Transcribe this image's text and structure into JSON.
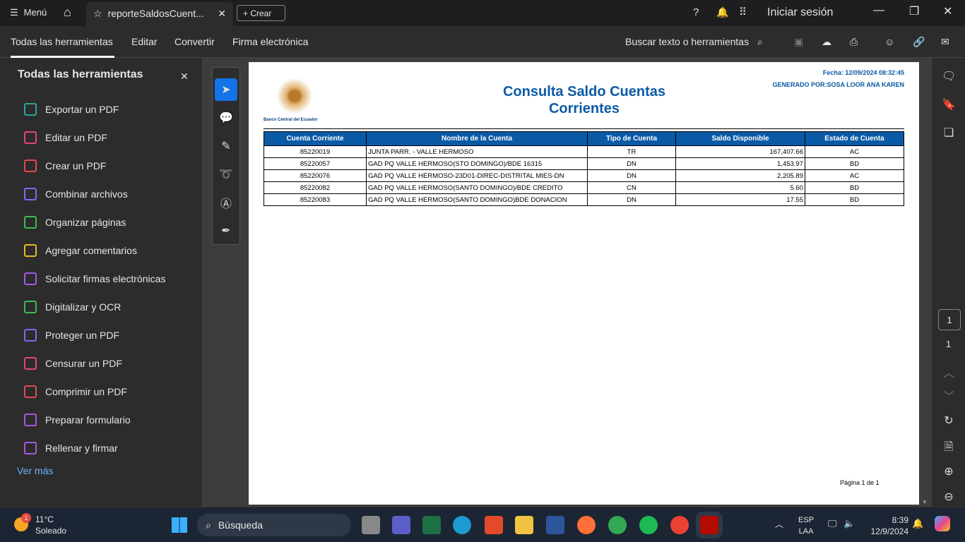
{
  "topbar": {
    "menu": "Menú",
    "tab_title": "reporteSaldosCuent...",
    "create": "Crear",
    "signin": "Iniciar sesión"
  },
  "toolbar": {
    "tabs": [
      "Todas las herramientas",
      "Editar",
      "Convertir",
      "Firma electrónica"
    ],
    "search": "Buscar texto o herramientas"
  },
  "sidebar": {
    "title": "Todas las herramientas",
    "items": [
      {
        "label": "Exportar un PDF",
        "color": "#2fa39a"
      },
      {
        "label": "Editar un PDF",
        "color": "#e0457b"
      },
      {
        "label": "Crear un PDF",
        "color": "#e34850"
      },
      {
        "label": "Combinar archivos",
        "color": "#7b6cf0"
      },
      {
        "label": "Organizar páginas",
        "color": "#3fb950"
      },
      {
        "label": "Agregar comentarios",
        "color": "#e8b92e"
      },
      {
        "label": "Solicitar firmas electrónicas",
        "color": "#a459e0"
      },
      {
        "label": "Digitalizar y OCR",
        "color": "#3fb950"
      },
      {
        "label": "Proteger un PDF",
        "color": "#7b6cf0"
      },
      {
        "label": "Censurar un PDF",
        "color": "#e0457b"
      },
      {
        "label": "Comprimir un PDF",
        "color": "#e34850"
      },
      {
        "label": "Preparar formulario",
        "color": "#a459e0"
      },
      {
        "label": "Rellenar y firmar",
        "color": "#a459e0"
      }
    ],
    "more": "Ver más"
  },
  "document": {
    "bank": "Banco Central del Ecuador",
    "title_line1": "Consulta Saldo Cuentas",
    "title_line2": "Corrientes",
    "date": "Fecha: 12/09/2024 08:32:45",
    "generated": "GENERADO POR:SOSA LOOR ANA KAREN",
    "columns": [
      "Cuenta Corriente",
      "Nombre de la Cuenta",
      "Tipo de Cuenta",
      "Saldo Disponible",
      "Estado de Cuenta"
    ],
    "rows": [
      [
        "85220019",
        "JUNTA PARR. - VALLE HERMOSO",
        "TR",
        "167,407.66",
        "AC"
      ],
      [
        "85220057",
        "GAD PQ VALLE HERMOSO(STO DOMINGO)/BDE 16315",
        "DN",
        "1,453.97",
        "BD"
      ],
      [
        "85220076",
        "GAD PQ VALLE HERMOSO-23D01-DIREC-DISTRITAL MIES-DN",
        "DN",
        "2,205.89",
        "AC"
      ],
      [
        "85220082",
        "GAD PQ VALLE HERMOSO(SANTO DOMINGO)/BDE CREDITO",
        "CN",
        "5.60",
        "BD"
      ],
      [
        "85220083",
        "GAD PQ VALLE HERMOSO(SANTO DOMINGO)BDE DONACION",
        "DN",
        "17.55",
        "BD"
      ]
    ],
    "footer": "Página 1 de 1",
    "accent": "#0a5aa6"
  },
  "rail": {
    "page_input": "1",
    "page_total": "1"
  },
  "taskbar": {
    "temp": "11°C",
    "weather": "Soleado",
    "badge": "1",
    "search": "Búsqueda",
    "lang1": "ESP",
    "lang2": "LAA",
    "time": "8:39",
    "date": "12/9/2024"
  }
}
